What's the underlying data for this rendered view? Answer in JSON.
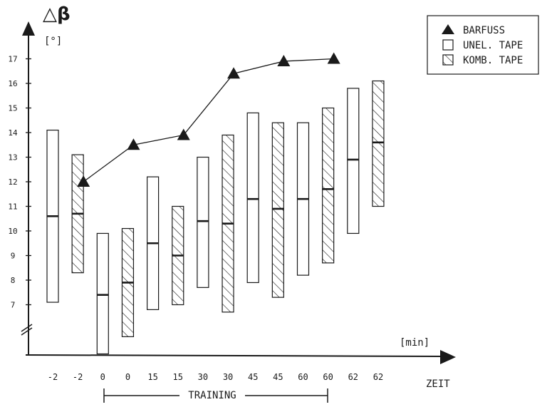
{
  "chart_data": {
    "type": "box-range",
    "ylabel": "△β",
    "yunit": "[°]",
    "xlabel": "ZEIT",
    "xunit": "[min]",
    "bracket_label": "TRAINING",
    "ylim": [
      5,
      18
    ],
    "y_ticks": [
      7,
      8,
      9,
      10,
      11,
      12,
      13,
      14,
      15,
      16,
      17
    ],
    "x_categories": [
      "-2",
      "-2",
      "0",
      "0",
      "15",
      "15",
      "30",
      "30",
      "45",
      "45",
      "60",
      "60",
      "62",
      "62"
    ],
    "legend": {
      "position": "top-right",
      "items": [
        "BARFUSS",
        "UNEL. TAPE",
        "KOMB. TAPE"
      ]
    },
    "series": [
      {
        "name": "BARFUSS",
        "style": "triangle-line",
        "points": [
          {
            "x": "-2",
            "y": 12.0
          },
          {
            "x": "0",
            "y": 13.5
          },
          {
            "x": "15",
            "y": 13.9
          },
          {
            "x": "30",
            "y": 16.4
          },
          {
            "x": "45",
            "y": 16.9
          },
          {
            "x": "60",
            "y": 17.0
          }
        ]
      },
      {
        "name": "UNEL. TAPE",
        "style": "open-box",
        "boxes": [
          {
            "x": "-2",
            "low": 7.1,
            "high": 14.1,
            "mid": 10.6
          },
          {
            "x": "0",
            "low": 5.0,
            "high": 9.9,
            "mid": 7.4
          },
          {
            "x": "15",
            "low": 6.8,
            "high": 12.2,
            "mid": 9.5
          },
          {
            "x": "30",
            "low": 7.7,
            "high": 13.0,
            "mid": 10.4
          },
          {
            "x": "45",
            "low": 7.9,
            "high": 14.8,
            "mid": 11.3
          },
          {
            "x": "60",
            "low": 8.2,
            "high": 14.4,
            "mid": 11.3
          },
          {
            "x": "62",
            "low": 9.9,
            "high": 15.8,
            "mid": 12.9
          }
        ]
      },
      {
        "name": "KOMB. TAPE",
        "style": "hatched-box",
        "boxes": [
          {
            "x": "-2",
            "low": 8.3,
            "high": 13.1,
            "mid": 10.7
          },
          {
            "x": "0",
            "low": 5.7,
            "high": 10.1,
            "mid": 7.9
          },
          {
            "x": "15",
            "low": 7.0,
            "high": 11.0,
            "mid": 9.0
          },
          {
            "x": "30",
            "low": 6.7,
            "high": 13.9,
            "mid": 10.3
          },
          {
            "x": "45",
            "low": 7.3,
            "high": 14.4,
            "mid": 10.9
          },
          {
            "x": "60",
            "low": 8.7,
            "high": 15.0,
            "mid": 11.7
          },
          {
            "x": "62",
            "low": 11.0,
            "high": 16.1,
            "mid": 13.6
          }
        ]
      }
    ],
    "colors": {
      "ink": "#1a1a1a",
      "paper": "#ffffff"
    }
  }
}
